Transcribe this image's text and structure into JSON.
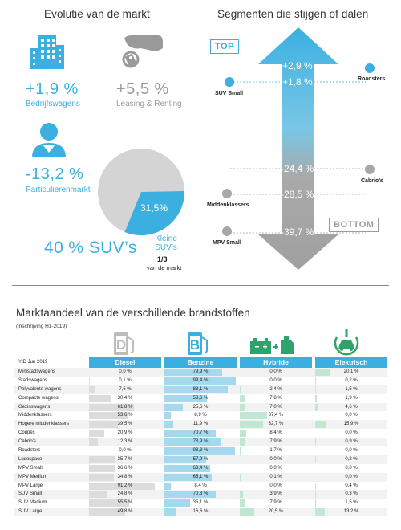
{
  "left": {
    "title": "Evolutie van de markt",
    "business": {
      "value": "+1,9 %",
      "label": "Bedrijfswagens"
    },
    "leasing": {
      "value": "+5,5 %",
      "label": "Leasing & Renting"
    },
    "private": {
      "value": "-13,2 %",
      "label": "Particulierenmarkt"
    },
    "suv": {
      "share": "40 % SUV’s",
      "pie_value": "31,5%",
      "small_label_1": "Kleine",
      "small_label_2": "SUV’s",
      "fraction": "1/3",
      "fraction_label": "van de markt",
      "pie_fraction": 0.315
    }
  },
  "right": {
    "title": "Segmenten die stijgen of dalen",
    "top_tag": "TOP",
    "bottom_tag": "BOTTOM",
    "values": [
      "+2,9 %",
      "+1,8 %",
      "-24,4 %",
      "-28,5 %",
      "-39,7 %"
    ],
    "segments": [
      "Roadsters",
      "SUV Small",
      "Cabrio’s",
      "Middenklassers",
      "MPV Small"
    ]
  },
  "table": {
    "title": "Marktaandeel van de verschillende brandstoffen",
    "subtitle": "(inschrijving H1-2019)",
    "period": "YtD Jun 2019",
    "columns": [
      "Diesel",
      "Benzine",
      "Hybride",
      "Elektrisch"
    ],
    "icons": [
      "diesel-pump-icon",
      "petrol-pump-icon",
      "hybrid-battery-icon",
      "electric-car-icon"
    ],
    "colors": {
      "diesel": "#dcdcdc",
      "benzine": "#a6d9ee",
      "hybride": "#bfe7d2",
      "elektrisch": "#bfe7d2",
      "accent": "#3bb0e0"
    },
    "rows": [
      {
        "name": "Ministadswagens",
        "values": [
          "0,0 %",
          "79,9 %",
          "0,0 %",
          "20,1 %"
        ],
        "num": [
          0.0,
          79.9,
          0.0,
          20.1
        ]
      },
      {
        "name": "Stadswagens",
        "values": [
          "0,1 %",
          "99,4 %",
          "0,0 %",
          "0,2 %"
        ],
        "num": [
          0.1,
          99.4,
          0.0,
          0.2
        ]
      },
      {
        "name": "Polyvalente wagens",
        "values": [
          "7,6 %",
          "88,1 %",
          "2,4 %",
          "1,5 %"
        ],
        "num": [
          7.6,
          88.1,
          2.4,
          1.5
        ]
      },
      {
        "name": "Compacte wagens",
        "values": [
          "30,4 %",
          "58,6 %",
          "7,8 %",
          "1,9 %"
        ],
        "num": [
          30.4,
          58.6,
          7.8,
          1.9
        ]
      },
      {
        "name": "Gezinswagens",
        "values": [
          "61,8 %",
          "25,6 %",
          "7,0 %",
          "4,6 %"
        ],
        "num": [
          61.8,
          25.6,
          7.0,
          4.6
        ]
      },
      {
        "name": "Middenklassers",
        "values": [
          "53,6 %",
          "8,9 %",
          "37,4 %",
          "0,0 %"
        ],
        "num": [
          53.6,
          8.9,
          37.4,
          0.0
        ]
      },
      {
        "name": "Hogere middenklassers",
        "values": [
          "39,5 %",
          "11,9 %",
          "32,7 %",
          "15,9 %"
        ],
        "num": [
          39.5,
          11.9,
          32.7,
          15.9
        ]
      },
      {
        "name": "Coupés",
        "values": [
          "20,9 %",
          "70,7 %",
          "8,4 %",
          "0,0 %"
        ],
        "num": [
          20.9,
          70.7,
          8.4,
          0.0
        ]
      },
      {
        "name": "Cabrio’s",
        "values": [
          "12,3 %",
          "78,9 %",
          "7,9 %",
          "0,9 %"
        ],
        "num": [
          12.3,
          78.9,
          7.9,
          0.9
        ]
      },
      {
        "name": "Roadsters",
        "values": [
          "0,0 %",
          "98,3 %",
          "1,7 %",
          "0,0 %"
        ],
        "num": [
          0.0,
          98.3,
          1.7,
          0.0
        ]
      },
      {
        "name": "Ludospace",
        "values": [
          "35,7 %",
          "57,9 %",
          "0,0 %",
          "0,2 %"
        ],
        "num": [
          35.7,
          57.9,
          0.0,
          0.2
        ]
      },
      {
        "name": "MPV Small",
        "values": [
          "36,6 %",
          "63,4 %",
          "0,0 %",
          "0,0 %"
        ],
        "num": [
          36.6,
          63.4,
          0.0,
          0.0
        ]
      },
      {
        "name": "MPV Medium",
        "values": [
          "34,8 %",
          "65,1 %",
          "0,1 %",
          "0,0 %"
        ],
        "num": [
          34.8,
          65.1,
          0.1,
          0.0
        ]
      },
      {
        "name": "MPV Large",
        "values": [
          "91,2 %",
          "8,4 %",
          "0,0 %",
          "0,4 %"
        ],
        "num": [
          91.2,
          8.4,
          0.0,
          0.4
        ]
      },
      {
        "name": "SUV Small",
        "values": [
          "24,8 %",
          "70,8 %",
          "3,9 %",
          "0,3 %"
        ],
        "num": [
          24.8,
          70.8,
          3.9,
          0.3
        ]
      },
      {
        "name": "SUV Medium",
        "values": [
          "55,5 %",
          "35,1 %",
          "7,9 %",
          "1,5 %"
        ],
        "num": [
          55.5,
          35.1,
          7.9,
          1.5
        ]
      },
      {
        "name": "SUV Large",
        "values": [
          "49,8 %",
          "16,6 %",
          "20,5 %",
          "13,2 %"
        ],
        "num": [
          49.8,
          16.6,
          20.5,
          13.2
        ]
      }
    ]
  }
}
